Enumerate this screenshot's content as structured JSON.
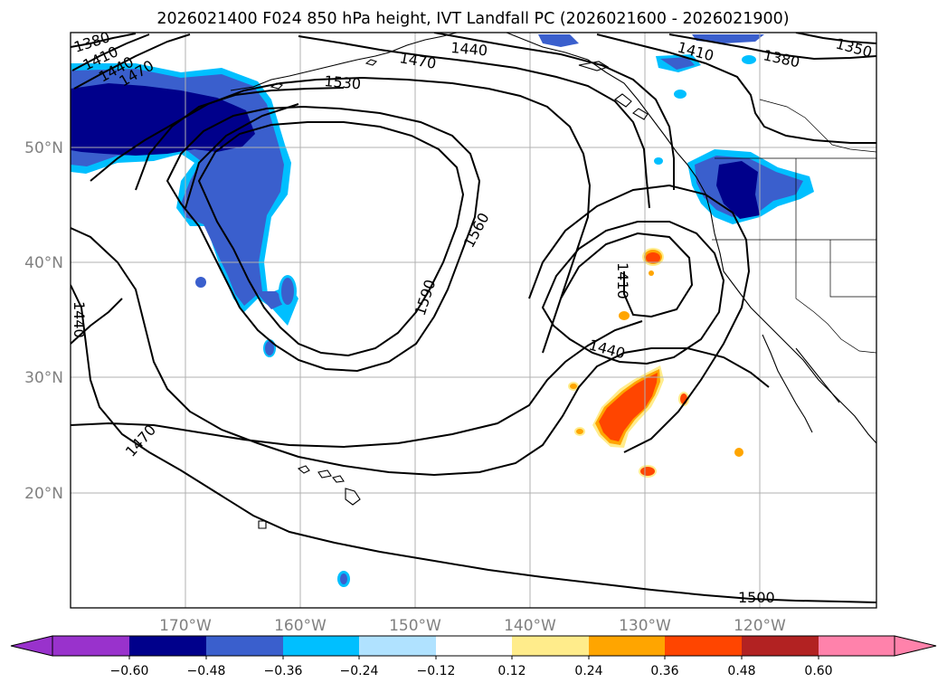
{
  "title": "2026021400 F024 850 hPa height, IVT Landfall PC (2026021600 - 2026021900)",
  "map": {
    "lon_labels": [
      "170°W",
      "160°W",
      "150°W",
      "140°W",
      "130°W",
      "120°W"
    ],
    "lat_labels": [
      "50°N",
      "40°N",
      "30°N",
      "20°N"
    ],
    "extent": {
      "lon": [
        -180,
        -110
      ],
      "lat": [
        10,
        60
      ]
    },
    "gridlines": true
  },
  "contour_labels": {
    "c1350": "1350",
    "c1380a": "1380",
    "c1380b": "1380",
    "c1410a": "1410",
    "c1410b": "1410",
    "c1410c": "1410",
    "c1440a": "1440",
    "c1440b": "1440",
    "c1440c": "1440",
    "c1440d": "1440",
    "c1470a": "1470",
    "c1470b": "1470",
    "c1470c": "1470",
    "c1500": "1500",
    "c1530": "1530",
    "c1560": "1560",
    "c1590": "1590"
  },
  "colorbar": {
    "ticks": [
      "−0.60",
      "−0.48",
      "−0.36",
      "−0.24",
      "−0.12",
      "0.12",
      "0.24",
      "0.36",
      "0.48",
      "0.60"
    ],
    "bins": [
      {
        "range": "< -0.60",
        "color": "#9932cc"
      },
      {
        "range": "-0.60 to -0.48",
        "color": "#00008b"
      },
      {
        "range": "-0.48 to -0.36",
        "color": "#3a5fcd"
      },
      {
        "range": "-0.36 to -0.24",
        "color": "#00bfff"
      },
      {
        "range": "-0.24 to -0.12",
        "color": "#b0e2ff"
      },
      {
        "range": "-0.12 to 0.12",
        "color": "#ffffff"
      },
      {
        "range": "0.12 to 0.24",
        "color": "#ffec8b"
      },
      {
        "range": "0.24 to 0.36",
        "color": "#ffa500"
      },
      {
        "range": "0.36 to 0.48",
        "color": "#ff4500"
      },
      {
        "range": "0.48 to 0.60",
        "color": "#b22222"
      },
      {
        "range": "> 0.60",
        "color": "#ff82ab"
      }
    ]
  }
}
